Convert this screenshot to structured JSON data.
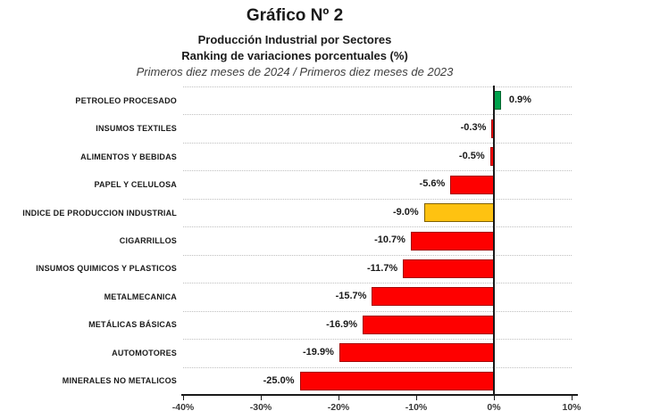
{
  "title": "Gráfico Nº 2",
  "subtitle1": "Producción Industrial por Sectores",
  "subtitle2": "Ranking de variaciones porcentuales (%)",
  "period_note": "Primeros diez meses de 2024 / Primeros diez meses de 2023",
  "chart_data": {
    "type": "bar",
    "orientation": "horizontal",
    "title": "Gráfico Nº 2 — Producción Industrial por Sectores",
    "subtitle": "Ranking de variaciones porcentuales (%)",
    "annotation": "Primeros diez meses de 2024 / Primeros diez meses de 2023",
    "xlabel": "",
    "ylabel": "",
    "xlim": [
      -40,
      10
    ],
    "x_ticks": [
      "-40%",
      "-30%",
      "-20%",
      "-10%",
      "0%",
      "10%"
    ],
    "x_tick_values": [
      -40,
      -30,
      -20,
      -10,
      0,
      10
    ],
    "grid": "dotted horizontal row separators",
    "legend": "none",
    "categories": [
      "PETROLEO PROCESADO",
      "INSUMOS TEXTILES",
      "ALIMENTOS Y BEBIDAS",
      "PAPEL Y CELULOSA",
      "INDICE DE PRODUCCION INDUSTRIAL",
      "CIGARRILLOS",
      "INSUMOS QUIMICOS Y PLASTICOS",
      "METALMECANICA",
      "METÁLICAS BÁSICAS",
      "AUTOMOTORES",
      "MINERALES NO METALICOS"
    ],
    "values": [
      0.9,
      -0.3,
      -0.5,
      -5.6,
      -9.0,
      -10.7,
      -11.7,
      -15.7,
      -16.9,
      -19.9,
      -25.0
    ],
    "value_labels": [
      "0.9%",
      "-0.3%",
      "-0.5%",
      "-5.6%",
      "-9.0%",
      "-10.7%",
      "-11.7%",
      "-15.7%",
      "-16.9%",
      "-19.9%",
      "-25.0%"
    ],
    "bar_color_keys": [
      "green",
      "red",
      "red",
      "red",
      "yellow",
      "red",
      "red",
      "red",
      "red",
      "red",
      "red"
    ]
  },
  "colors": {
    "green": "#00A24C",
    "green_border": "#00672F",
    "red": "#FE0000",
    "red_border": "#A40000",
    "yellow": "#FEC211",
    "yellow_border": "#806000",
    "axis": "#1a1a1a",
    "gridline": "#bfbfbf"
  }
}
